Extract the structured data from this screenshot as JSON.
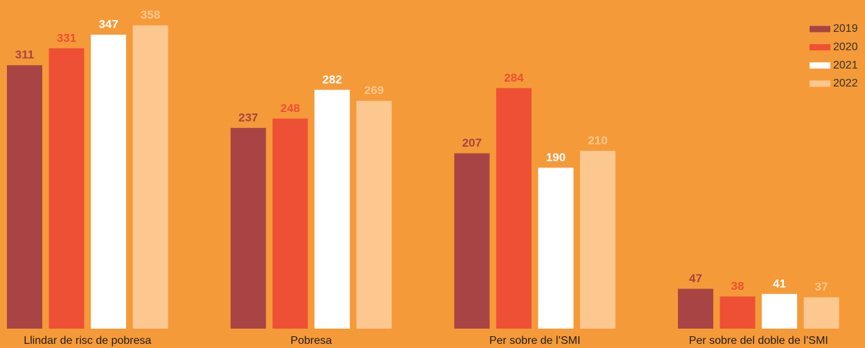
{
  "chart_data": {
    "type": "bar",
    "categories": [
      "Llindar de risc de pobresa",
      "Pobresa",
      "Per sobre de l’SMI",
      "Per sobre del doble de l’SMI"
    ],
    "series": [
      {
        "name": "2019",
        "color": "#a84444",
        "values": [
          311,
          237,
          207,
          47
        ]
      },
      {
        "name": "2020",
        "color": "#ee5035",
        "values": [
          331,
          248,
          284,
          38
        ]
      },
      {
        "name": "2021",
        "color": "#ffffff",
        "values": [
          347,
          282,
          190,
          41
        ]
      },
      {
        "name": "2022",
        "color": "#fcc890",
        "values": [
          358,
          269,
          210,
          37
        ]
      }
    ],
    "ylim": [
      0,
      388
    ],
    "legend": "top-right",
    "background": "#f59a38"
  }
}
